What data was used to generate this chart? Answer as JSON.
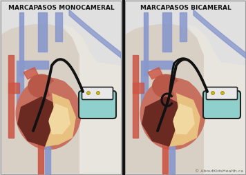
{
  "title_left": "MARCAPASOS MONOCAMERAL",
  "title_right": "MARCAPASOS BICAMERAL",
  "copyright": "© AboutKidsHealth.ca",
  "bg_outer": "#cccccc",
  "panel_bg": "#e0e0e0",
  "body_color": "#d8cfc5",
  "body_right_color": "#e8e4de",
  "divider_color": "#111111",
  "title_color": "#111111",
  "heart_outer": "#c87060",
  "heart_mid": "#b85848",
  "heart_dark": "#6a2a22",
  "heart_light": "#e8c080",
  "heart_light2": "#f0d8a0",
  "vein_color": "#8898cc",
  "vein_dark": "#6070aa",
  "artery_color": "#cc5545",
  "lead_color": "#111111",
  "device_body": "#90d0cc",
  "device_top": "#e8e8e8",
  "device_border": "#222222",
  "copyright_color": "#666666",
  "panel_border": "#999999"
}
